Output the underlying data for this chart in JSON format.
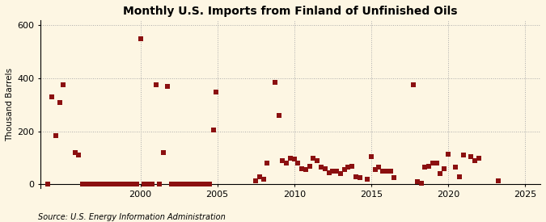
{
  "title": "Monthly U.S. Imports from Finland of Unfinished Oils",
  "ylabel": "Thousand Barrels",
  "source": "Source: U.S. Energy Information Administration",
  "xlim": [
    1993.5,
    2026
  ],
  "ylim": [
    -15,
    620
  ],
  "yticks": [
    0,
    200,
    400,
    600
  ],
  "xticks": [
    2000,
    2005,
    2010,
    2015,
    2020,
    2025
  ],
  "bg_color": "#fdf6e3",
  "plot_bg": "#fdf6e3",
  "marker_color": "#8B1010",
  "marker_size": 14,
  "data_points": [
    [
      1994.25,
      330
    ],
    [
      1994.5,
      185
    ],
    [
      1994.75,
      310
    ],
    [
      1995.0,
      375
    ],
    [
      1995.75,
      120
    ],
    [
      1996.0,
      110
    ],
    [
      1994.0,
      0
    ],
    [
      1996.25,
      0
    ],
    [
      1996.5,
      0
    ],
    [
      1996.75,
      0
    ],
    [
      1997.0,
      0
    ],
    [
      1997.25,
      0
    ],
    [
      1997.5,
      0
    ],
    [
      1997.75,
      0
    ],
    [
      1998.0,
      0
    ],
    [
      1998.25,
      0
    ],
    [
      1998.5,
      0
    ],
    [
      1998.75,
      0
    ],
    [
      1999.0,
      0
    ],
    [
      1999.25,
      0
    ],
    [
      1999.5,
      0
    ],
    [
      1999.75,
      0
    ],
    [
      2000.0,
      550
    ],
    [
      2000.25,
      0
    ],
    [
      2000.5,
      0
    ],
    [
      2000.75,
      0
    ],
    [
      2001.0,
      375
    ],
    [
      2001.25,
      0
    ],
    [
      2001.5,
      120
    ],
    [
      2001.75,
      370
    ],
    [
      2002.0,
      0
    ],
    [
      2002.25,
      0
    ],
    [
      2002.5,
      0
    ],
    [
      2002.75,
      0
    ],
    [
      2003.0,
      0
    ],
    [
      2003.25,
      0
    ],
    [
      2003.5,
      0
    ],
    [
      2003.75,
      0
    ],
    [
      2004.0,
      0
    ],
    [
      2004.25,
      0
    ],
    [
      2004.5,
      0
    ],
    [
      2004.75,
      205
    ],
    [
      2004.9,
      350
    ],
    [
      2007.5,
      15
    ],
    [
      2007.75,
      30
    ],
    [
      2008.0,
      20
    ],
    [
      2008.25,
      80
    ],
    [
      2008.75,
      385
    ],
    [
      2009.0,
      260
    ],
    [
      2009.25,
      90
    ],
    [
      2009.5,
      80
    ],
    [
      2009.75,
      100
    ],
    [
      2010.0,
      95
    ],
    [
      2010.25,
      80
    ],
    [
      2010.5,
      60
    ],
    [
      2010.75,
      55
    ],
    [
      2011.0,
      70
    ],
    [
      2011.25,
      100
    ],
    [
      2011.5,
      90
    ],
    [
      2011.75,
      65
    ],
    [
      2012.0,
      60
    ],
    [
      2012.25,
      45
    ],
    [
      2012.5,
      50
    ],
    [
      2012.75,
      50
    ],
    [
      2013.0,
      40
    ],
    [
      2013.25,
      55
    ],
    [
      2013.5,
      65
    ],
    [
      2013.75,
      70
    ],
    [
      2014.0,
      30
    ],
    [
      2014.25,
      25
    ],
    [
      2014.75,
      20
    ],
    [
      2015.0,
      105
    ],
    [
      2015.25,
      55
    ],
    [
      2015.5,
      65
    ],
    [
      2015.75,
      50
    ],
    [
      2016.0,
      50
    ],
    [
      2016.25,
      50
    ],
    [
      2016.5,
      25
    ],
    [
      2017.75,
      375
    ],
    [
      2018.0,
      10
    ],
    [
      2018.25,
      5
    ],
    [
      2018.5,
      65
    ],
    [
      2018.75,
      70
    ],
    [
      2019.0,
      80
    ],
    [
      2019.25,
      80
    ],
    [
      2019.5,
      40
    ],
    [
      2019.75,
      60
    ],
    [
      2020.0,
      115
    ],
    [
      2020.5,
      65
    ],
    [
      2020.75,
      30
    ],
    [
      2021.0,
      110
    ],
    [
      2021.5,
      105
    ],
    [
      2021.75,
      90
    ],
    [
      2022.0,
      100
    ],
    [
      2023.25,
      15
    ]
  ]
}
